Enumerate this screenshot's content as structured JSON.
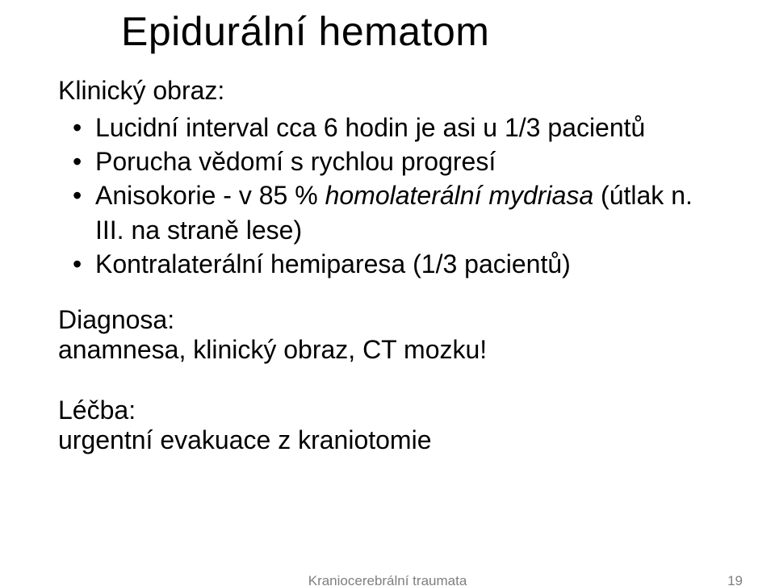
{
  "colors": {
    "background": "#ffffff",
    "text": "#000000",
    "footer": "#7f7f7f"
  },
  "typography": {
    "title_fontsize": 50,
    "body_fontsize": 32,
    "footer_fontsize": 17,
    "font_family": "Arial"
  },
  "title": "Epidurální hematom",
  "clinical": {
    "label": "Klinický obraz:",
    "bullets": [
      {
        "text": "Lucidní interval cca 6 hodin je asi u 1/3 pacientů"
      },
      {
        "text": "Porucha vědomí s rychlou progresí"
      },
      {
        "prefix": "Anisokorie  - v  85 % ",
        "italic": "homolaterální  mydriasa",
        "suffix": " (útlak n. III. na straně lese)"
      },
      {
        "text": "Kontralaterální hemiparesa (1/3 pacientů)"
      }
    ]
  },
  "diagnosis": {
    "label": "Diagnosa:",
    "text": "anamnesa, klinický obraz, CT mozku!"
  },
  "treatment": {
    "label": "Léčba:",
    "text": "urgentní evakuace z kraniotomie"
  },
  "footer": {
    "center": "Kraniocerebrální traumata",
    "page": "19"
  }
}
